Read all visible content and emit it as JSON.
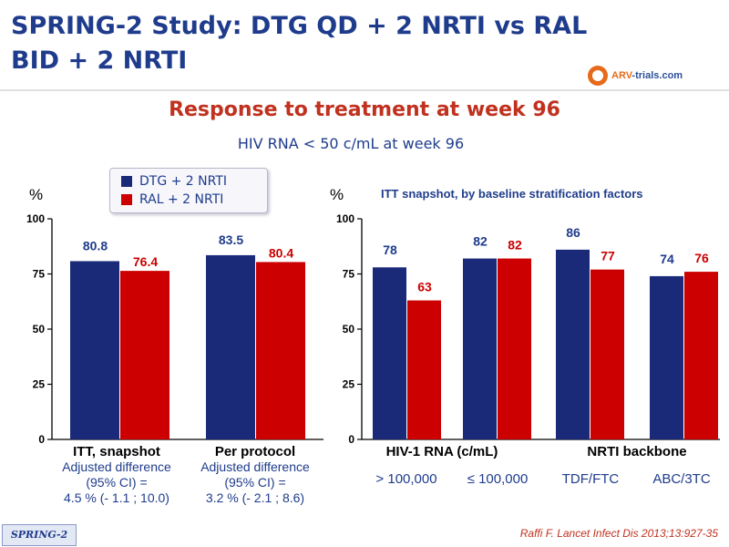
{
  "header": {
    "title": "SPRING-2 Study: DTG QD + 2 NRTI vs RAL BID + 2 NRTI",
    "logo_text_a": "ARV",
    "logo_text_b": "-trials",
    "logo_text_c": ".com"
  },
  "subtitle": "Response to treatment at week 96",
  "subtitle2": "HIV RNA < 50 c/mL at week 96",
  "legend": {
    "items": [
      {
        "label": "DTG + 2 NRTI",
        "color": "#1a2a78"
      },
      {
        "label": "RAL + 2 NRTI",
        "color": "#cc0000"
      }
    ]
  },
  "chart_data": [
    {
      "type": "bar",
      "ylabel": "%",
      "ylim": [
        0,
        100
      ],
      "yticks": [
        "0",
        "25",
        "50",
        "75",
        "100"
      ],
      "categories": [
        "ITT, snapshot",
        "Per protocol"
      ],
      "series": [
        {
          "name": "DTG + 2 NRTI",
          "values": [
            80.8,
            83.5
          ],
          "labels": [
            "80.8",
            "83.5"
          ]
        },
        {
          "name": "RAL + 2 NRTI",
          "values": [
            76.4,
            80.4
          ],
          "labels": [
            "76.4",
            "80.4"
          ]
        }
      ],
      "notes": [
        [
          "Adjusted difference",
          "(95% CI) =",
          "4.5 % (- 1.1 ; 10.0)"
        ],
        [
          "Adjusted difference",
          "(95% CI) =",
          "3.2 % (- 2.1 ; 8.6)"
        ]
      ]
    },
    {
      "type": "bar",
      "title": "ITT snapshot, by baseline stratification factors",
      "ylabel": "%",
      "ylim": [
        0,
        100
      ],
      "yticks": [
        "0",
        "25",
        "50",
        "75",
        "100"
      ],
      "categories": [
        "> 100,000",
        "≤ 100,000",
        "TDF/FTC",
        "ABC/3TC"
      ],
      "groups": [
        "HIV-1 RNA (c/mL)",
        "NRTI backbone"
      ],
      "series": [
        {
          "name": "DTG + 2 NRTI",
          "values": [
            78,
            82,
            86,
            74
          ],
          "labels": [
            "78",
            "82",
            "86",
            "74"
          ]
        },
        {
          "name": "RAL + 2 NRTI",
          "values": [
            63,
            82,
            77,
            76
          ],
          "labels": [
            "63",
            "82",
            "77",
            "76"
          ]
        }
      ]
    }
  ],
  "footer": {
    "tag": "SPRING-2",
    "reference": "Raffi F. Lancet Infect Dis 2013;13:927-35"
  }
}
